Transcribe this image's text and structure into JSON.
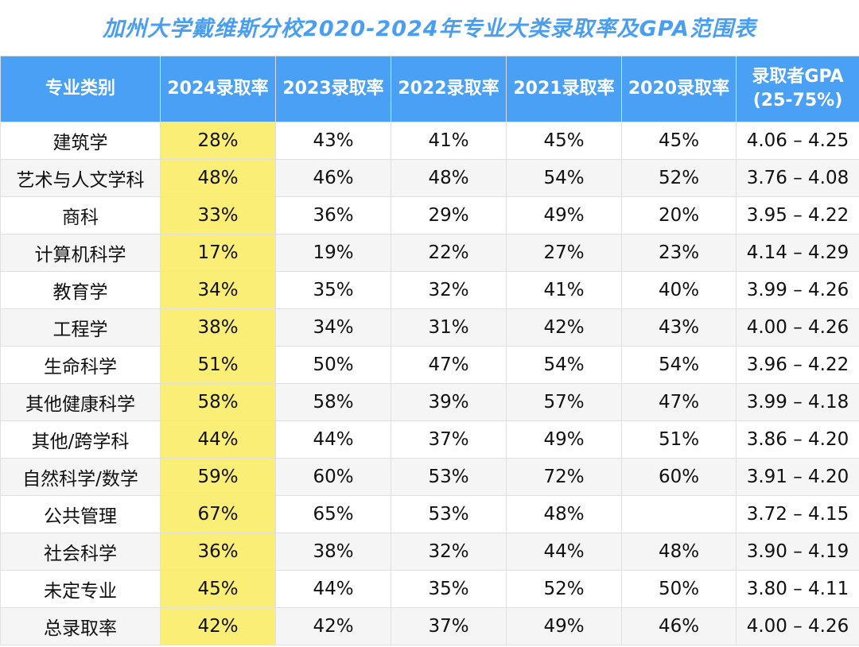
{
  "title": "加州大学戴维斯分校2020-2024年专业大类录取率及GPA范围表",
  "colors": {
    "header_bg": "#4aa0f5",
    "highlight": "#fbee77",
    "title": "#4a9ef2"
  },
  "headers": [
    "专业类别",
    "2024录取率",
    "2023录取率",
    "2022录取率",
    "2021录取率",
    "2020录取率",
    "录取者GPA\n(25-75%)"
  ],
  "header_gpa_line1": "录取者GPA",
  "header_gpa_line2": "(25-75%)",
  "rows": [
    [
      "建筑学",
      "28%",
      "43%",
      "41%",
      "45%",
      "45%",
      "4.06 – 4.25"
    ],
    [
      "艺术与人文学科",
      "48%",
      "46%",
      "48%",
      "54%",
      "52%",
      "3.76 – 4.08"
    ],
    [
      "商科",
      "33%",
      "36%",
      "29%",
      "49%",
      "20%",
      "3.95 – 4.22"
    ],
    [
      "计算机科学",
      "17%",
      "19%",
      "22%",
      "27%",
      "23%",
      "4.14 – 4.29"
    ],
    [
      "教育学",
      "34%",
      "35%",
      "32%",
      "41%",
      "40%",
      "3.99 – 4.26"
    ],
    [
      "工程学",
      "38%",
      "34%",
      "31%",
      "42%",
      "43%",
      "4.00 – 4.26"
    ],
    [
      "生命科学",
      "51%",
      "50%",
      "47%",
      "54%",
      "54%",
      "3.96 – 4.22"
    ],
    [
      "其他健康科学",
      "58%",
      "58%",
      "39%",
      "57%",
      "47%",
      "3.99 – 4.18"
    ],
    [
      "其他/跨学科",
      "44%",
      "44%",
      "37%",
      "49%",
      "51%",
      "3.86 – 4.20"
    ],
    [
      "自然科学/数学",
      "59%",
      "60%",
      "53%",
      "72%",
      "60%",
      "3.91 – 4.20"
    ],
    [
      "公共管理",
      "67%",
      "65%",
      "53%",
      "48%",
      "",
      "3.72 – 4.15"
    ],
    [
      "社会科学",
      "36%",
      "38%",
      "32%",
      "44%",
      "48%",
      "3.90 – 4.19"
    ],
    [
      "未定专业",
      "45%",
      "44%",
      "35%",
      "52%",
      "50%",
      "3.80 – 4.11"
    ],
    [
      "总录取率",
      "42%",
      "42%",
      "37%",
      "49%",
      "46%",
      "4.00 – 4.26"
    ]
  ]
}
